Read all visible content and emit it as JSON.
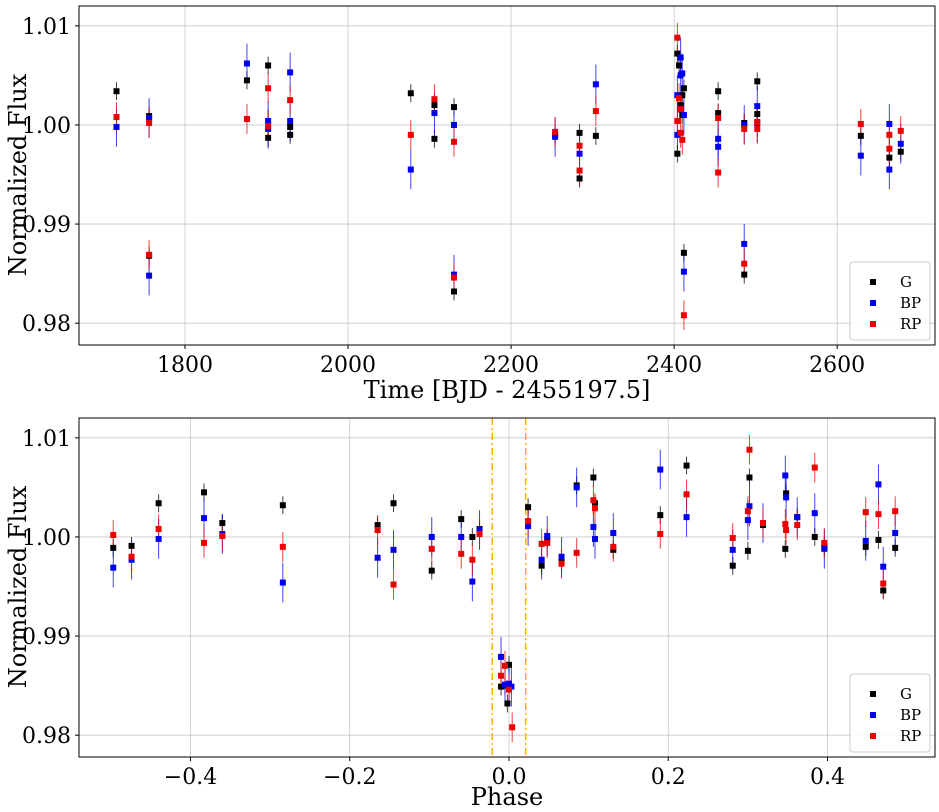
{
  "chart_data": [
    {
      "type": "scatter",
      "xlabel": "Time [BJD - 2455197.5]",
      "ylabel": "Normalized Flux",
      "xlim": [
        1670,
        2720
      ],
      "ylim": [
        0.9778,
        1.012
      ],
      "xticks": [
        1800,
        2000,
        2200,
        2400,
        2600
      ],
      "xtick_labels": [
        "1800",
        "2000",
        "2200",
        "2400",
        "2600"
      ],
      "yticks": [
        0.98,
        0.99,
        1.0,
        1.01
      ],
      "ytick_labels": [
        "0.98",
        "0.99",
        "1.00",
        "1.01"
      ],
      "grid": true,
      "legend_position": "bottom-right",
      "series": [
        {
          "name": "G",
          "color": "#000000",
          "err": 0.0009,
          "points": [
            [
              1716,
              1.0034
            ],
            [
              1756,
              1.0009
            ],
            [
              1756,
              0.9868
            ],
            [
              1876,
              1.0045
            ],
            [
              1902,
              1.006
            ],
            [
              1902,
              0.9987
            ],
            [
              1929,
              0.9998
            ],
            [
              1929,
              0.999
            ],
            [
              2077,
              1.0032
            ],
            [
              2106,
              0.9986
            ],
            [
              2106,
              1.002
            ],
            [
              2130,
              1.0018
            ],
            [
              2130,
              0.9832
            ],
            [
              2254,
              0.999
            ],
            [
              2284,
              0.9992
            ],
            [
              2284,
              0.9946
            ],
            [
              2304,
              0.9989
            ],
            [
              2404,
              1.0072
            ],
            [
              2404,
              0.9971
            ],
            [
              2406,
              1.006
            ],
            [
              2408,
              1.002
            ],
            [
              2410,
              1.003
            ],
            [
              2410,
              1.001
            ],
            [
              2412,
              0.9871
            ],
            [
              2412,
              1.0037
            ],
            [
              2454,
              1.0034
            ],
            [
              2454,
              1.0012
            ],
            [
              2486,
              0.9849
            ],
            [
              2486,
              1.0002
            ],
            [
              2502,
              1.0044
            ],
            [
              2502,
              1.0011
            ],
            [
              2629,
              0.9989
            ],
            [
              2664,
              0.9967
            ],
            [
              2678,
              0.9973
            ]
          ]
        },
        {
          "name": "BP",
          "color": "#0000ee",
          "err": 0.002,
          "points": [
            [
              1716,
              0.9998
            ],
            [
              1756,
              0.9848
            ],
            [
              1756,
              1.0007
            ],
            [
              1876,
              1.0062
            ],
            [
              1902,
              1.0004
            ],
            [
              1902,
              0.9996
            ],
            [
              1929,
              1.0053
            ],
            [
              1929,
              1.0004
            ],
            [
              2077,
              0.9955
            ],
            [
              2106,
              1.0012
            ],
            [
              2130,
              1.0
            ],
            [
              2130,
              0.9849
            ],
            [
              2254,
              0.9988
            ],
            [
              2284,
              0.9971
            ],
            [
              2304,
              1.0041
            ],
            [
              2404,
              1.003
            ],
            [
              2404,
              0.999
            ],
            [
              2408,
              1.005
            ],
            [
              2408,
              1.0068
            ],
            [
              2410,
              1.0052
            ],
            [
              2412,
              0.9852
            ],
            [
              2412,
              1.001
            ],
            [
              2454,
              0.9978
            ],
            [
              2454,
              0.9986
            ],
            [
              2486,
              0.988
            ],
            [
              2486,
              1.0
            ],
            [
              2502,
              1.0019
            ],
            [
              2502,
              1.0002
            ],
            [
              2629,
              0.9969
            ],
            [
              2664,
              1.0001
            ],
            [
              2664,
              0.9955
            ],
            [
              2678,
              0.9981
            ]
          ]
        },
        {
          "name": "RP",
          "color": "#ee0000",
          "err": 0.0015,
          "points": [
            [
              1716,
              1.0008
            ],
            [
              1756,
              1.0002
            ],
            [
              1756,
              0.9869
            ],
            [
              1876,
              1.0006
            ],
            [
              1902,
              1.0037
            ],
            [
              1902,
              0.9999
            ],
            [
              1929,
              1.0025
            ],
            [
              2077,
              0.999
            ],
            [
              2106,
              1.0026
            ],
            [
              2130,
              0.9983
            ],
            [
              2130,
              0.9846
            ],
            [
              2254,
              0.9993
            ],
            [
              2284,
              0.9954
            ],
            [
              2284,
              0.9979
            ],
            [
              2304,
              1.0014
            ],
            [
              2404,
              1.0088
            ],
            [
              2404,
              1.0004
            ],
            [
              2406,
              1.0027
            ],
            [
              2408,
              1.0016
            ],
            [
              2408,
              0.9992
            ],
            [
              2410,
              0.9985
            ],
            [
              2412,
              0.9808
            ],
            [
              2454,
              0.9952
            ],
            [
              2454,
              1.0007
            ],
            [
              2486,
              0.986
            ],
            [
              2486,
              0.9996
            ],
            [
              2502,
              0.9996
            ],
            [
              2502,
              1.0003
            ],
            [
              2629,
              1.0001
            ],
            [
              2664,
              0.999
            ],
            [
              2664,
              0.9976
            ],
            [
              2678,
              0.9994
            ]
          ]
        }
      ],
      "legend": [
        "G",
        "BP",
        "RP"
      ]
    },
    {
      "type": "scatter",
      "xlabel": "Phase",
      "ylabel": "Normalized Flux",
      "xlim": [
        -0.54,
        0.535
      ],
      "ylim": [
        0.9778,
        1.012
      ],
      "xticks": [
        -0.4,
        -0.2,
        0.0,
        0.2,
        0.4
      ],
      "xtick_labels": [
        "−0.4",
        "−0.2",
        "0.0",
        "0.2",
        "0.4"
      ],
      "yticks": [
        0.98,
        0.99,
        1.0,
        1.01
      ],
      "ytick_labels": [
        "0.98",
        "0.99",
        "1.00",
        "1.01"
      ],
      "grid": true,
      "legend_position": "bottom-right",
      "vlines": {
        "x": [
          -0.021,
          0.021
        ],
        "color": "#ffb000",
        "style": "dash-dot"
      },
      "series": [
        {
          "name": "G",
          "color": "#000000",
          "err": 0.0009,
          "points": [
            [
              -0.497,
              0.9989
            ],
            [
              -0.474,
              0.9991
            ],
            [
              -0.44,
              1.0034
            ],
            [
              -0.383,
              1.0045
            ],
            [
              -0.36,
              1.0014
            ],
            [
              -0.284,
              1.0032
            ],
            [
              -0.165,
              1.0012
            ],
            [
              -0.145,
              1.0034
            ],
            [
              -0.097,
              0.9966
            ],
            [
              -0.06,
              1.0018
            ],
            [
              -0.046,
              1.0
            ],
            [
              -0.037,
              1.0008
            ],
            [
              -0.01,
              0.9849
            ],
            [
              -0.005,
              0.985
            ],
            [
              0.0,
              0.9871
            ],
            [
              -0.002,
              0.9832
            ],
            [
              0.024,
              1.003
            ],
            [
              0.041,
              0.9971
            ],
            [
              0.048,
              0.9998
            ],
            [
              0.066,
              0.9975
            ],
            [
              0.085,
              1.0052
            ],
            [
              0.106,
              1.006
            ],
            [
              0.108,
              1.0034
            ],
            [
              0.131,
              0.9987
            ],
            [
              0.19,
              1.0022
            ],
            [
              0.223,
              1.0072
            ],
            [
              0.281,
              0.9971
            ],
            [
              0.3,
              0.9986
            ],
            [
              0.302,
              1.006
            ],
            [
              0.319,
              1.0012
            ],
            [
              0.347,
              0.9988
            ],
            [
              0.348,
              1.0044
            ],
            [
              0.362,
              1.002
            ],
            [
              0.384,
              1.0
            ],
            [
              0.396,
              0.999
            ],
            [
              0.448,
              0.999
            ],
            [
              0.464,
              0.9997
            ],
            [
              0.47,
              0.9946
            ],
            [
              0.485,
              0.9989
            ]
          ]
        },
        {
          "name": "BP",
          "color": "#0000ee",
          "err": 0.002,
          "points": [
            [
              -0.497,
              0.9969
            ],
            [
              -0.474,
              0.9977
            ],
            [
              -0.44,
              0.9998
            ],
            [
              -0.383,
              1.0019
            ],
            [
              -0.36,
              1.0003
            ],
            [
              -0.284,
              0.9954
            ],
            [
              -0.165,
              0.9979
            ],
            [
              -0.145,
              0.9987
            ],
            [
              -0.097,
              1.0
            ],
            [
              -0.06,
              1.0
            ],
            [
              -0.046,
              0.9955
            ],
            [
              -0.037,
              1.0007
            ],
            [
              -0.01,
              0.9879
            ],
            [
              -0.005,
              0.9851
            ],
            [
              0.0,
              0.9852
            ],
            [
              0.003,
              0.9849
            ],
            [
              0.024,
              1.0011
            ],
            [
              0.041,
              0.9977
            ],
            [
              0.048,
              1.0001
            ],
            [
              0.066,
              0.998
            ],
            [
              0.085,
              1.005
            ],
            [
              0.106,
              1.001
            ],
            [
              0.108,
              0.9998
            ],
            [
              0.131,
              1.0004
            ],
            [
              0.19,
              1.0068
            ],
            [
              0.223,
              1.002
            ],
            [
              0.281,
              0.9987
            ],
            [
              0.3,
              1.0017
            ],
            [
              0.302,
              1.0031
            ],
            [
              0.319,
              1.0014
            ],
            [
              0.347,
              1.0062
            ],
            [
              0.348,
              1.004
            ],
            [
              0.362,
              1.002
            ],
            [
              0.384,
              1.0024
            ],
            [
              0.396,
              0.9988
            ],
            [
              0.448,
              0.9996
            ],
            [
              0.464,
              1.0053
            ],
            [
              0.47,
              0.997
            ],
            [
              0.485,
              1.0004
            ]
          ]
        },
        {
          "name": "RP",
          "color": "#ee0000",
          "err": 0.0015,
          "points": [
            [
              -0.497,
              1.0002
            ],
            [
              -0.474,
              0.998
            ],
            [
              -0.44,
              1.0008
            ],
            [
              -0.383,
              0.9994
            ],
            [
              -0.36,
              1.0001
            ],
            [
              -0.284,
              0.999
            ],
            [
              -0.165,
              1.0007
            ],
            [
              -0.145,
              0.9952
            ],
            [
              -0.097,
              0.9988
            ],
            [
              -0.06,
              0.9983
            ],
            [
              -0.046,
              0.9977
            ],
            [
              -0.037,
              1.0003
            ],
            [
              -0.01,
              0.986
            ],
            [
              -0.005,
              0.987
            ],
            [
              0.0,
              0.9846
            ],
            [
              0.004,
              0.9808
            ],
            [
              0.024,
              1.0016
            ],
            [
              0.041,
              0.9993
            ],
            [
              0.048,
              0.9994
            ],
            [
              0.066,
              0.9973
            ],
            [
              0.085,
              0.9984
            ],
            [
              0.106,
              1.0037
            ],
            [
              0.108,
              1.0029
            ],
            [
              0.131,
              0.999
            ],
            [
              0.19,
              1.0003
            ],
            [
              0.223,
              1.0043
            ],
            [
              0.281,
              0.9999
            ],
            [
              0.3,
              1.0026
            ],
            [
              0.302,
              1.0088
            ],
            [
              0.319,
              1.0014
            ],
            [
              0.347,
              1.0013
            ],
            [
              0.348,
              1.0007
            ],
            [
              0.362,
              1.0012
            ],
            [
              0.384,
              1.007
            ],
            [
              0.396,
              0.9994
            ],
            [
              0.448,
              1.0025
            ],
            [
              0.464,
              1.0023
            ],
            [
              0.47,
              0.9953
            ],
            [
              0.485,
              1.0026
            ]
          ]
        }
      ],
      "legend": [
        "G",
        "BP",
        "RP"
      ]
    }
  ]
}
